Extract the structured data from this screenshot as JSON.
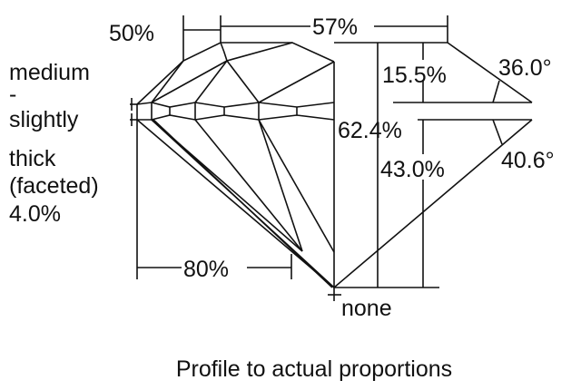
{
  "labels": {
    "crown_height_ratio": "50%",
    "table": "57%",
    "crown_height": "15.5%",
    "crown_angle": "36.0°",
    "total_depth": "62.4%",
    "pavilion_depth": "43.0%",
    "pavilion_angle": "40.6°",
    "culet": "none",
    "lower_half": "80%",
    "girdle": [
      "medium",
      "-",
      "slightly",
      "thick",
      "(faceted)",
      "4.0%"
    ]
  },
  "caption": "Profile to actual proportions"
}
